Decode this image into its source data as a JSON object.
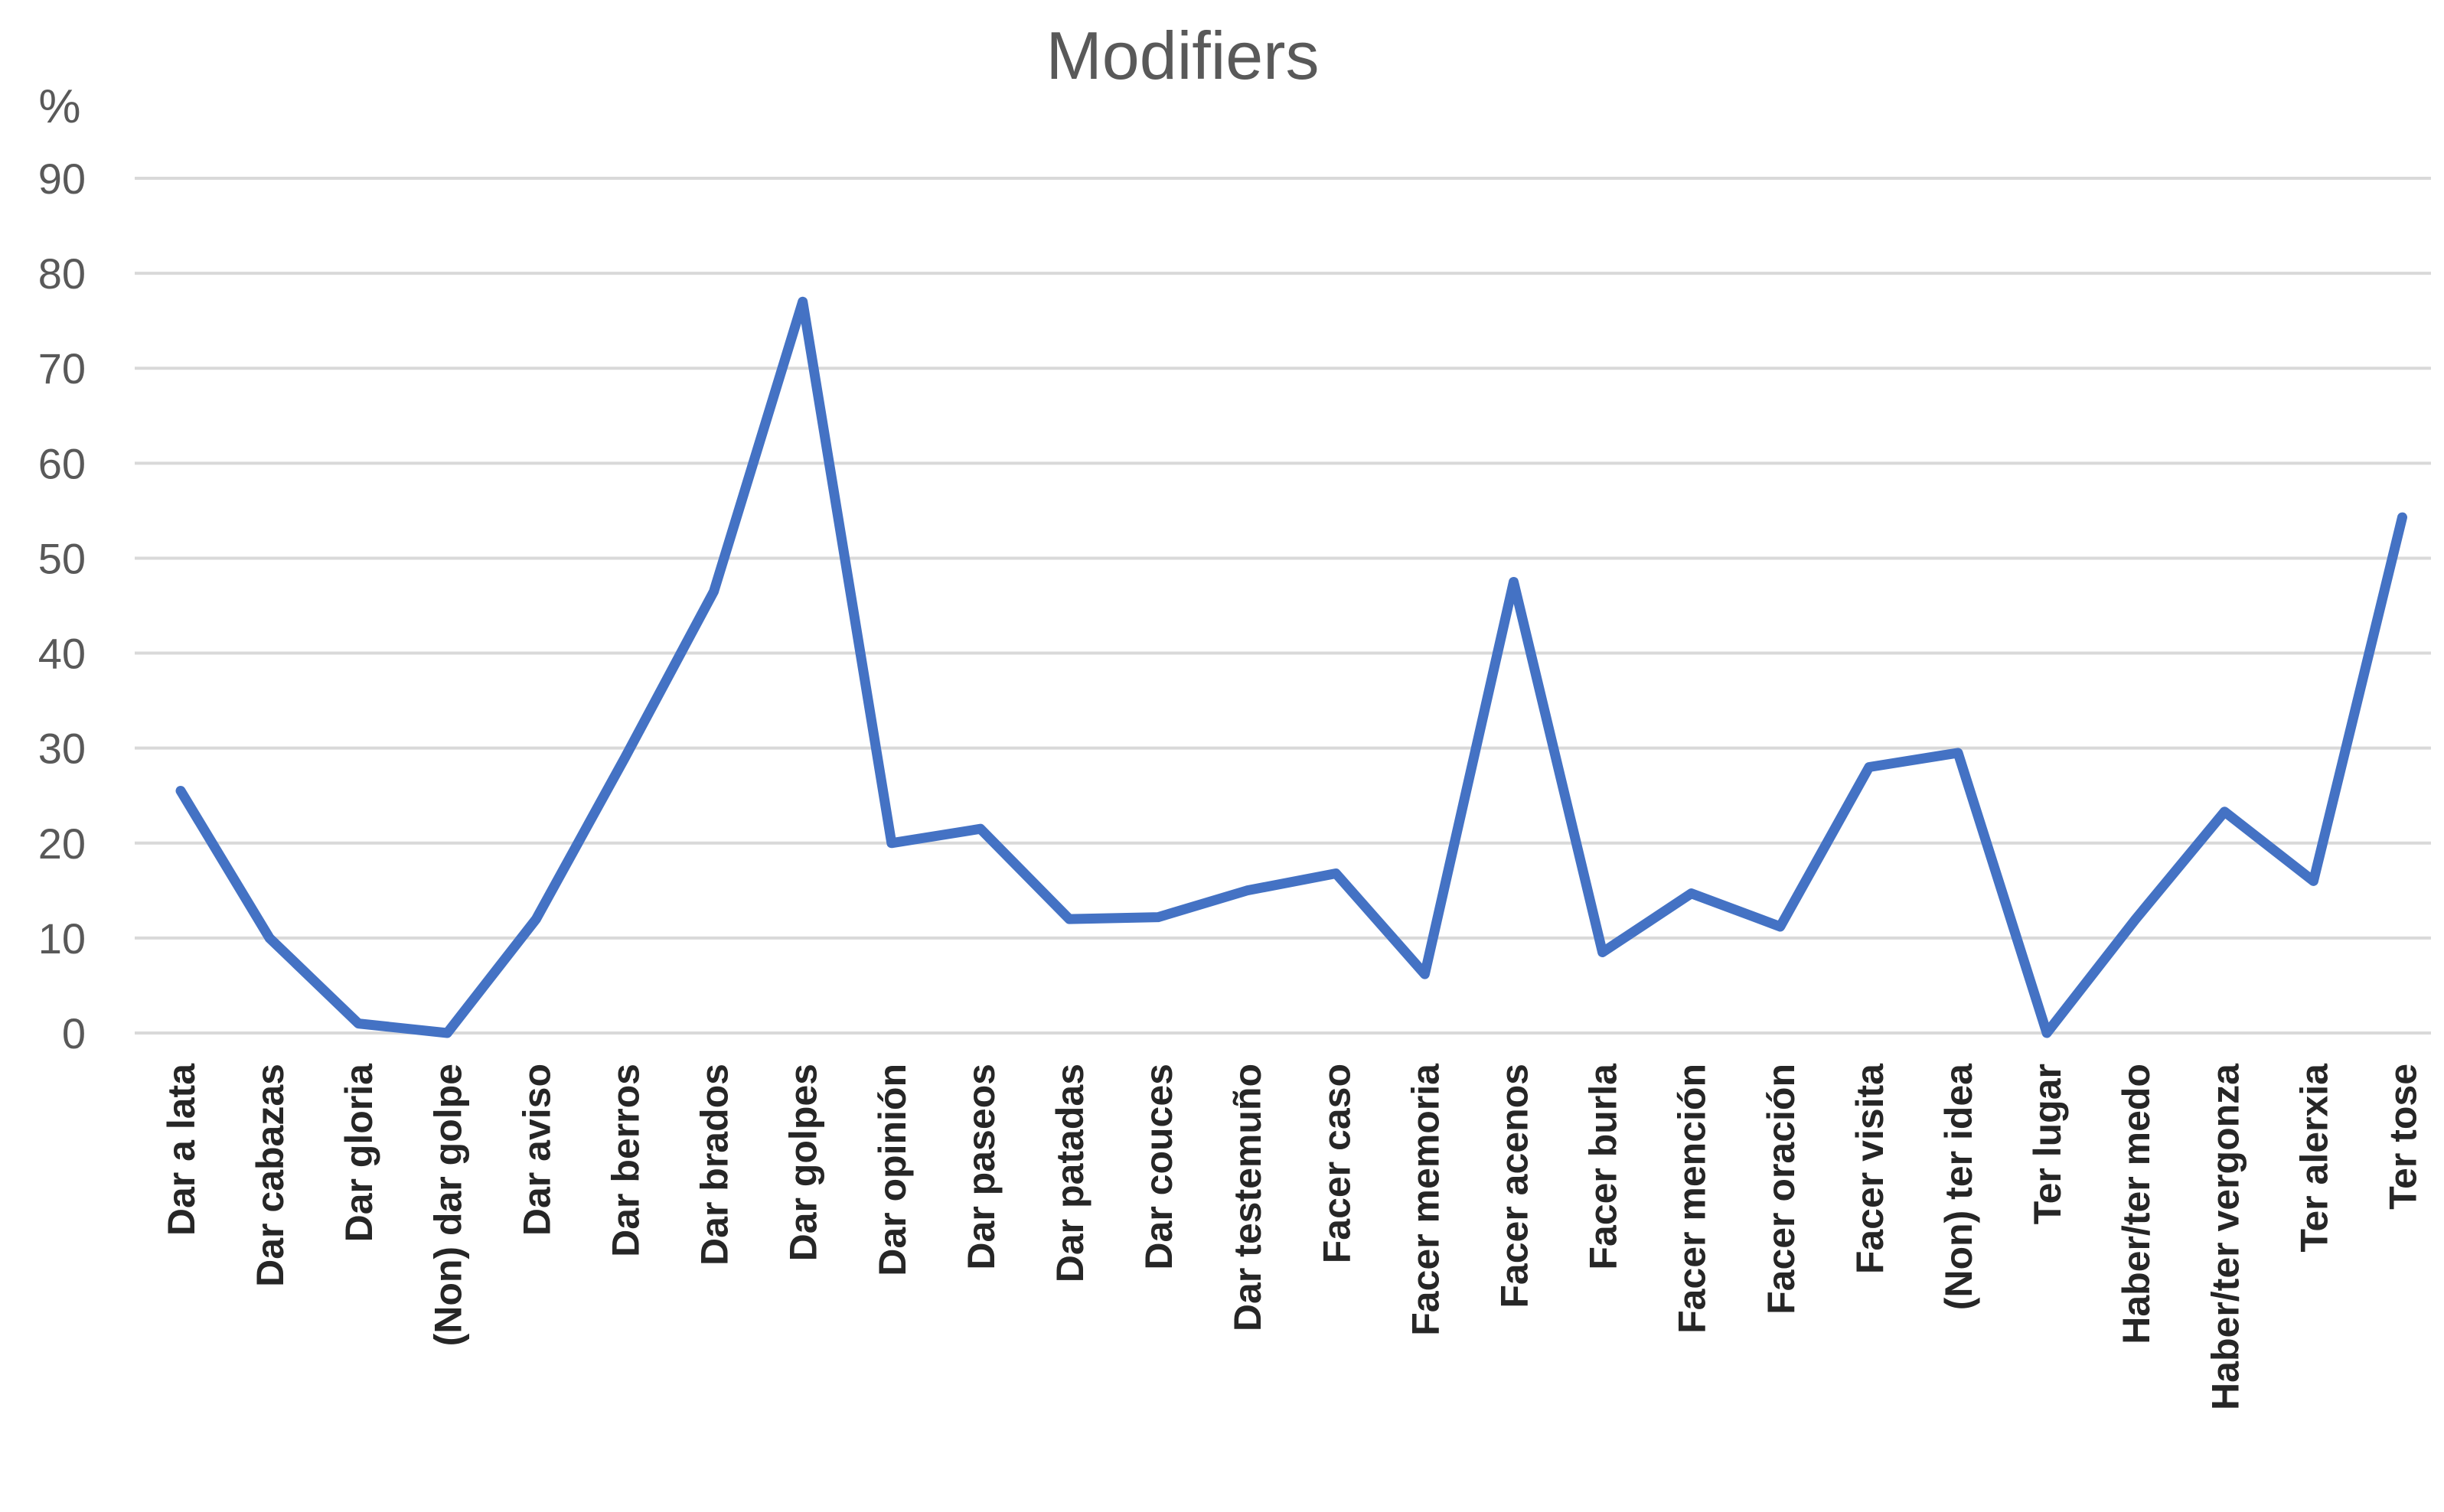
{
  "chart_data": {
    "type": "line",
    "title": "Modifiers",
    "ylabel": "%",
    "xlabel": "",
    "ylim": [
      0,
      90
    ],
    "yticks": [
      0,
      10,
      20,
      30,
      40,
      50,
      60,
      70,
      80,
      90
    ],
    "grid": true,
    "legend": "none",
    "color": "#4472c4",
    "categories": [
      "Dar a lata",
      "Dar cabazas",
      "Dar gloria",
      "(Non) dar golpe",
      "Dar aviso",
      "Dar berros",
      "Dar brados",
      "Dar golpes",
      "Dar opinión",
      "Dar paseos",
      "Dar patadas",
      "Dar couces",
      "Dar testemuño",
      "Facer caso",
      "Facer memoria",
      "Facer acenos",
      "Facer burla",
      "Facer mención",
      "Facer oración",
      "Facer visita",
      "(Non) ter idea",
      "Ter lugar",
      "Haber/ter medo",
      "Haber/ter vergonza",
      "Ter alerxia",
      "Ter tose"
    ],
    "series": [
      {
        "values": [
          25.5,
          10,
          1,
          0,
          12,
          29,
          46.5,
          77,
          20,
          21.5,
          12,
          12.2,
          15,
          16.8,
          6.2,
          47.5,
          8.5,
          14.7,
          11.2,
          28,
          29.5,
          0,
          12,
          23.3,
          16,
          54.3
        ]
      }
    ]
  }
}
